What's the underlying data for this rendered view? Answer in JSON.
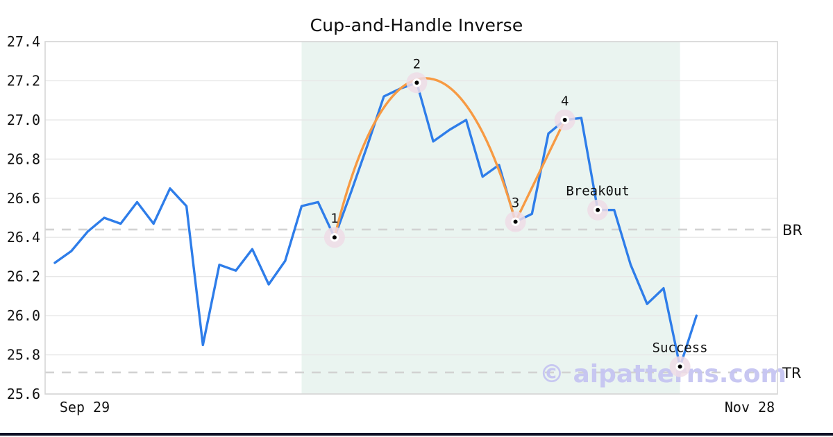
{
  "chart_data": {
    "type": "line",
    "title": "Cup-and-Handle Inverse",
    "watermark": "© aipatterns.com",
    "x_tick_labels": [
      "Sep 29",
      "Nov 28"
    ],
    "y_ticks": [
      27.4,
      27.2,
      27.0,
      26.8,
      26.6,
      26.4,
      26.2,
      26.0,
      25.8,
      25.6
    ],
    "ylim": [
      25.6,
      27.4
    ],
    "grid": true,
    "legend": "none",
    "series": [
      {
        "name": "price",
        "values": [
          26.27,
          26.33,
          26.43,
          26.5,
          26.47,
          26.58,
          26.47,
          26.65,
          26.56,
          25.85,
          26.26,
          26.23,
          26.34,
          26.16,
          26.28,
          26.56,
          26.58,
          26.4,
          26.63,
          26.87,
          27.12,
          27.16,
          27.19,
          26.89,
          26.95,
          27.0,
          26.71,
          26.77,
          26.48,
          26.52,
          26.93,
          27.0,
          27.01,
          26.54,
          26.54,
          26.26,
          26.06,
          26.14,
          25.74,
          26.0
        ]
      }
    ],
    "pattern_overlay": {
      "name": "cup-and-handle-outline",
      "cup_indices": [
        17,
        22,
        28
      ],
      "handle_index": 31,
      "apex_value": 27.19
    },
    "annotations": [
      {
        "label": "1",
        "index": 17,
        "value": 26.4
      },
      {
        "label": "2",
        "index": 22,
        "value": 27.19
      },
      {
        "label": "3",
        "index": 28,
        "value": 26.48
      },
      {
        "label": "4",
        "index": 31,
        "value": 27.0
      },
      {
        "label": "Break0ut",
        "index": 33,
        "value": 26.54
      },
      {
        "label": "Success",
        "index": 38,
        "value": 25.74
      }
    ],
    "levels": [
      {
        "label": "BR",
        "value": 26.44
      },
      {
        "label": "TR",
        "value": 25.71
      }
    ],
    "shaded_region": {
      "from_index": 15,
      "to_index": 38
    }
  },
  "colors": {
    "price_line": "#2e7de9",
    "pattern_line": "#f79a43",
    "shade": "#eaf4f0",
    "grid": "#e7e7e7",
    "level_dash": "#d2d2d2",
    "marker_halo": "#efdce6",
    "marker_dot": "#000000",
    "marker_ring": "#ffffff",
    "watermark": "#c6c5f2",
    "text": "#111111",
    "spine": "#d6d6d6",
    "bottom_bar": "#0e1026"
  }
}
